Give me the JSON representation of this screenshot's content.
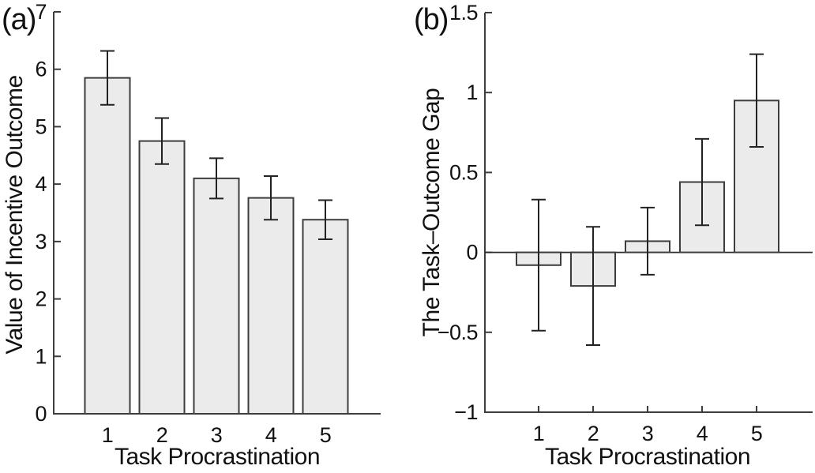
{
  "figure": {
    "panels": [
      {
        "tag": "(a)"
      },
      {
        "tag": "(b)"
      }
    ]
  },
  "chart_data": [
    {
      "type": "bar",
      "panel": "(a)",
      "title": "",
      "xlabel": "Task Procrastination",
      "ylabel": "Value of Incentive Outcome",
      "categories": [
        "1",
        "2",
        "3",
        "4",
        "5"
      ],
      "values": [
        5.85,
        4.75,
        4.1,
        3.76,
        3.38
      ],
      "error_bars": [
        0.47,
        0.4,
        0.35,
        0.38,
        0.34
      ],
      "ylim": [
        0,
        7
      ],
      "ytick_values": [
        0,
        1,
        2,
        3,
        4,
        5,
        6,
        7
      ],
      "ytick_labels": [
        "0",
        "1",
        "2",
        "3",
        "4",
        "5",
        "6",
        "7"
      ],
      "grid": false,
      "legend": null,
      "bar_fill": "#ebebeb",
      "bar_edge": "#3d3d3d",
      "error_color": "#222222",
      "axis_color": "#3d3d3d"
    },
    {
      "type": "bar",
      "panel": "(b)",
      "title": "",
      "xlabel": "Task Procrastination",
      "ylabel": "The Task–Outcome Gap",
      "categories": [
        "1",
        "2",
        "3",
        "4",
        "5"
      ],
      "values": [
        -0.08,
        -0.21,
        0.07,
        0.44,
        0.95
      ],
      "error_bars": [
        0.41,
        0.37,
        0.21,
        0.27,
        0.29
      ],
      "ylim": [
        -1,
        1.5
      ],
      "ytick_values": [
        -1,
        -0.5,
        0,
        0.5,
        1,
        1.5
      ],
      "ytick_labels": [
        "−1",
        "−0.5",
        "0",
        "0.5",
        "1",
        "1.5"
      ],
      "grid": false,
      "legend": null,
      "zero_line": true,
      "bar_fill": "#ebebeb",
      "bar_edge": "#3d3d3d",
      "error_color": "#222222",
      "axis_color": "#3d3d3d"
    }
  ]
}
